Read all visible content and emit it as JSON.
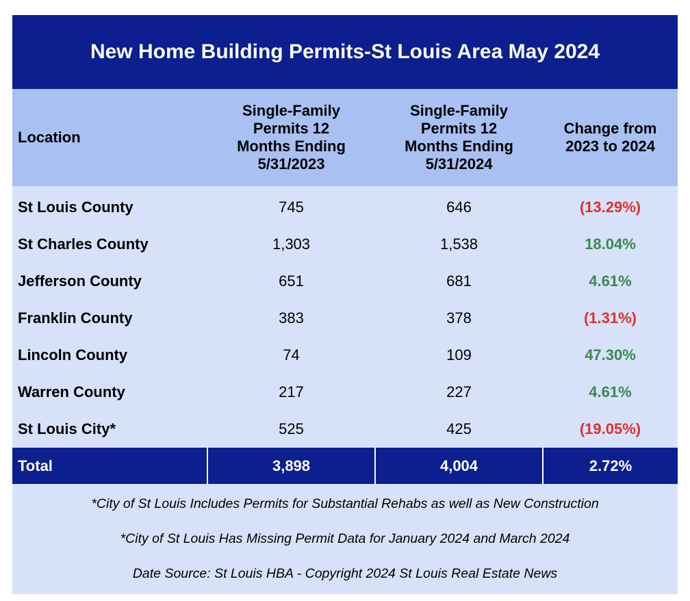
{
  "title": "New Home Building Permits-St Louis Area May 2024",
  "table": {
    "columns": [
      "Location",
      "Single-Family Permits 12 Months Ending 5/31/2023",
      "Single-Family Permits 12 Months Ending 5/31/2024",
      "Change from 2023  to 2024"
    ],
    "rows": [
      [
        "St Louis County",
        "745",
        "646",
        "(13.29%)"
      ],
      [
        "St Charles County",
        "1,303",
        "1,538",
        "18.04%"
      ],
      [
        "Jefferson County",
        "651",
        "681",
        "4.61%"
      ],
      [
        "Franklin County",
        "383",
        "378",
        "(1.31%)"
      ],
      [
        "Lincoln County",
        "74",
        "109",
        "47.30%"
      ],
      [
        "Warren County",
        "217",
        "227",
        "4.61%"
      ],
      [
        "St Louis City*",
        "525",
        "425",
        "(19.05%)"
      ]
    ],
    "total": [
      "Total",
      "3,898",
      "4,004",
      "2.72%"
    ]
  },
  "notes": [
    "*City of St Louis Includes Permits for Substantial Rehabs as well as New Construction",
    "*City of St Louis Has Missing Permit Data for January 2024 and March 2024",
    "Date Source: St Louis HBA - Copyright 2024 St Louis Real Estate News"
  ]
}
